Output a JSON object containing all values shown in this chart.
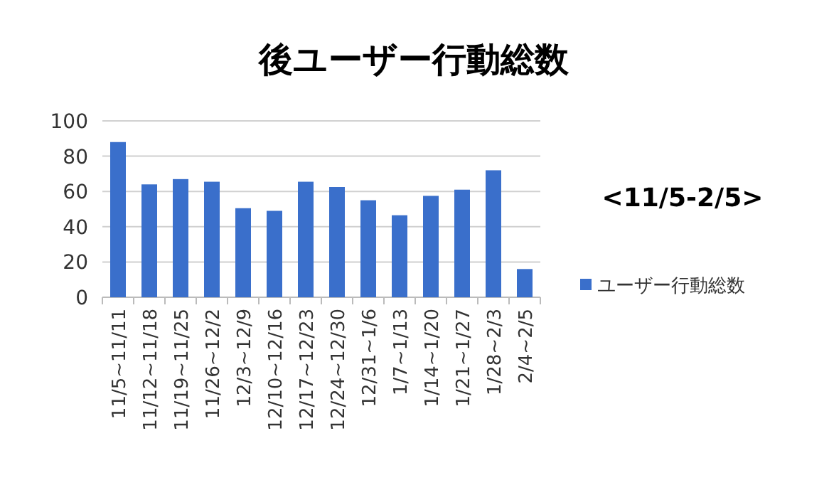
{
  "chart_data": {
    "type": "bar",
    "title": "後ユーザー行動総数",
    "categories": [
      "11/5~11/11",
      "11/12~11/18",
      "11/19~11/25",
      "11/26~12/2",
      "12/3~12/9",
      "12/10~12/16",
      "12/17~12/23",
      "12/24~12/30",
      "12/31~1/6",
      "1/7~1/13",
      "1/14~1/20",
      "1/21~1/27",
      "1/28~2/3",
      "2/4~2/5"
    ],
    "series": [
      {
        "name": "ユーザー行動総数",
        "color": "#3a6fcb",
        "values": [
          88,
          64,
          67,
          65.5,
          50.5,
          49,
          65.5,
          62.5,
          55,
          46.5,
          57.5,
          61,
          72,
          16
        ]
      }
    ],
    "ylim": [
      0,
      100
    ],
    "yticks": [
      0,
      20,
      40,
      60,
      80,
      100
    ],
    "grid": "y",
    "legend": "right",
    "annotations": [
      "<11/5-2/5>"
    ]
  }
}
